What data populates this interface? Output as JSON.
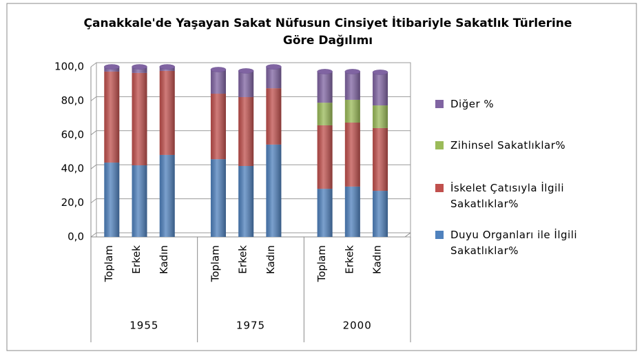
{
  "chart_data": {
    "type": "stacked_bar",
    "title": "Çanakkale'de Yaşayan Sakat Nüfusun Cinsiyet İtibariyle Sakatlık Türlerine Göre Dağılımı",
    "categories": [
      "Toplam",
      "Erkek",
      "Kadın",
      "Toplam",
      "Erkek",
      "Kadın",
      "Toplam",
      "Erkek",
      "Kadın"
    ],
    "groups": [
      "1955",
      "1975",
      "2000"
    ],
    "series": [
      {
        "name": "Duyu Organları ile İlgili Sakatlıklar%",
        "color": "#4f81bd",
        "values": [
          43.7,
          42.1,
          48.2,
          45.7,
          41.7,
          54.3,
          28.3,
          29.6,
          27.1
        ]
      },
      {
        "name": "İskelet Çatısıyla İlgili Sakatlıklar%",
        "color": "#c0504d",
        "values": [
          53.5,
          54.3,
          49.4,
          38.5,
          40.5,
          33.1,
          37.3,
          37.6,
          36.9
        ]
      },
      {
        "name": "Zihinsel Sakatlıklar%",
        "color": "#9bbb59",
        "values": [
          0,
          0,
          0,
          0,
          0,
          0,
          13.3,
          13.4,
          13.3
        ]
      },
      {
        "name": "Diğer %",
        "color": "#8064a2",
        "values": [
          2.8,
          3.6,
          2.4,
          14.2,
          15.4,
          12.6,
          18.3,
          16.6,
          19.5
        ]
      }
    ],
    "ylim": [
      0,
      100
    ],
    "yticks": [
      {
        "value": 0,
        "label": "0,0"
      },
      {
        "value": 20,
        "label": "20,0"
      },
      {
        "value": 40,
        "label": "40,0"
      },
      {
        "value": 60,
        "label": "60,0"
      },
      {
        "value": 80,
        "label": "80,0"
      },
      {
        "value": 100,
        "label": "100,0"
      }
    ],
    "grid": true,
    "legend": "right"
  }
}
